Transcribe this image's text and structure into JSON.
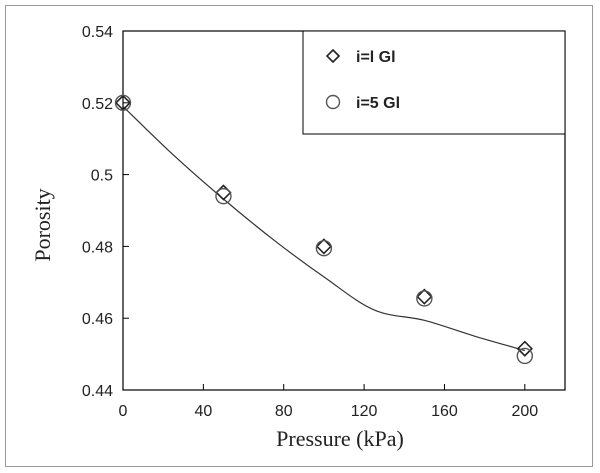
{
  "chart_data": {
    "type": "scatter",
    "title": "",
    "xlabel": "Pressure (kPa)",
    "ylabel": "Porosity",
    "xlim": [
      0,
      220
    ],
    "ylim": [
      0.44,
      0.54
    ],
    "xticks": [
      "0",
      "40",
      "80",
      "120",
      "160",
      "200"
    ],
    "yticks": [
      "0.44",
      "0.46",
      "0.48",
      "0.5",
      "0.52",
      "0.54"
    ],
    "grid": false,
    "legend_position": "top-right",
    "series": [
      {
        "name": "i=l  Gl",
        "marker": "diamond",
        "x": [
          0,
          50,
          100,
          150,
          200
        ],
        "y": [
          0.52,
          0.495,
          0.48,
          0.466,
          0.4515
        ]
      },
      {
        "name": "i=5  Gl",
        "marker": "circle",
        "x": [
          0,
          50,
          100,
          150,
          200
        ],
        "y": [
          0.52,
          0.494,
          0.4795,
          0.4655,
          0.4495
        ]
      }
    ],
    "fit_curve": {
      "x": [
        0,
        25,
        50,
        75,
        100,
        125,
        150,
        175,
        200
      ],
      "y": [
        0.519,
        0.5055,
        0.4932,
        0.4818,
        0.4715,
        0.4623,
        0.4594,
        0.455,
        0.451
      ]
    }
  },
  "colors": {
    "axis": "#000000",
    "curve": "#333333",
    "marker_stroke": "#222222",
    "circle_stroke": "#555555"
  }
}
